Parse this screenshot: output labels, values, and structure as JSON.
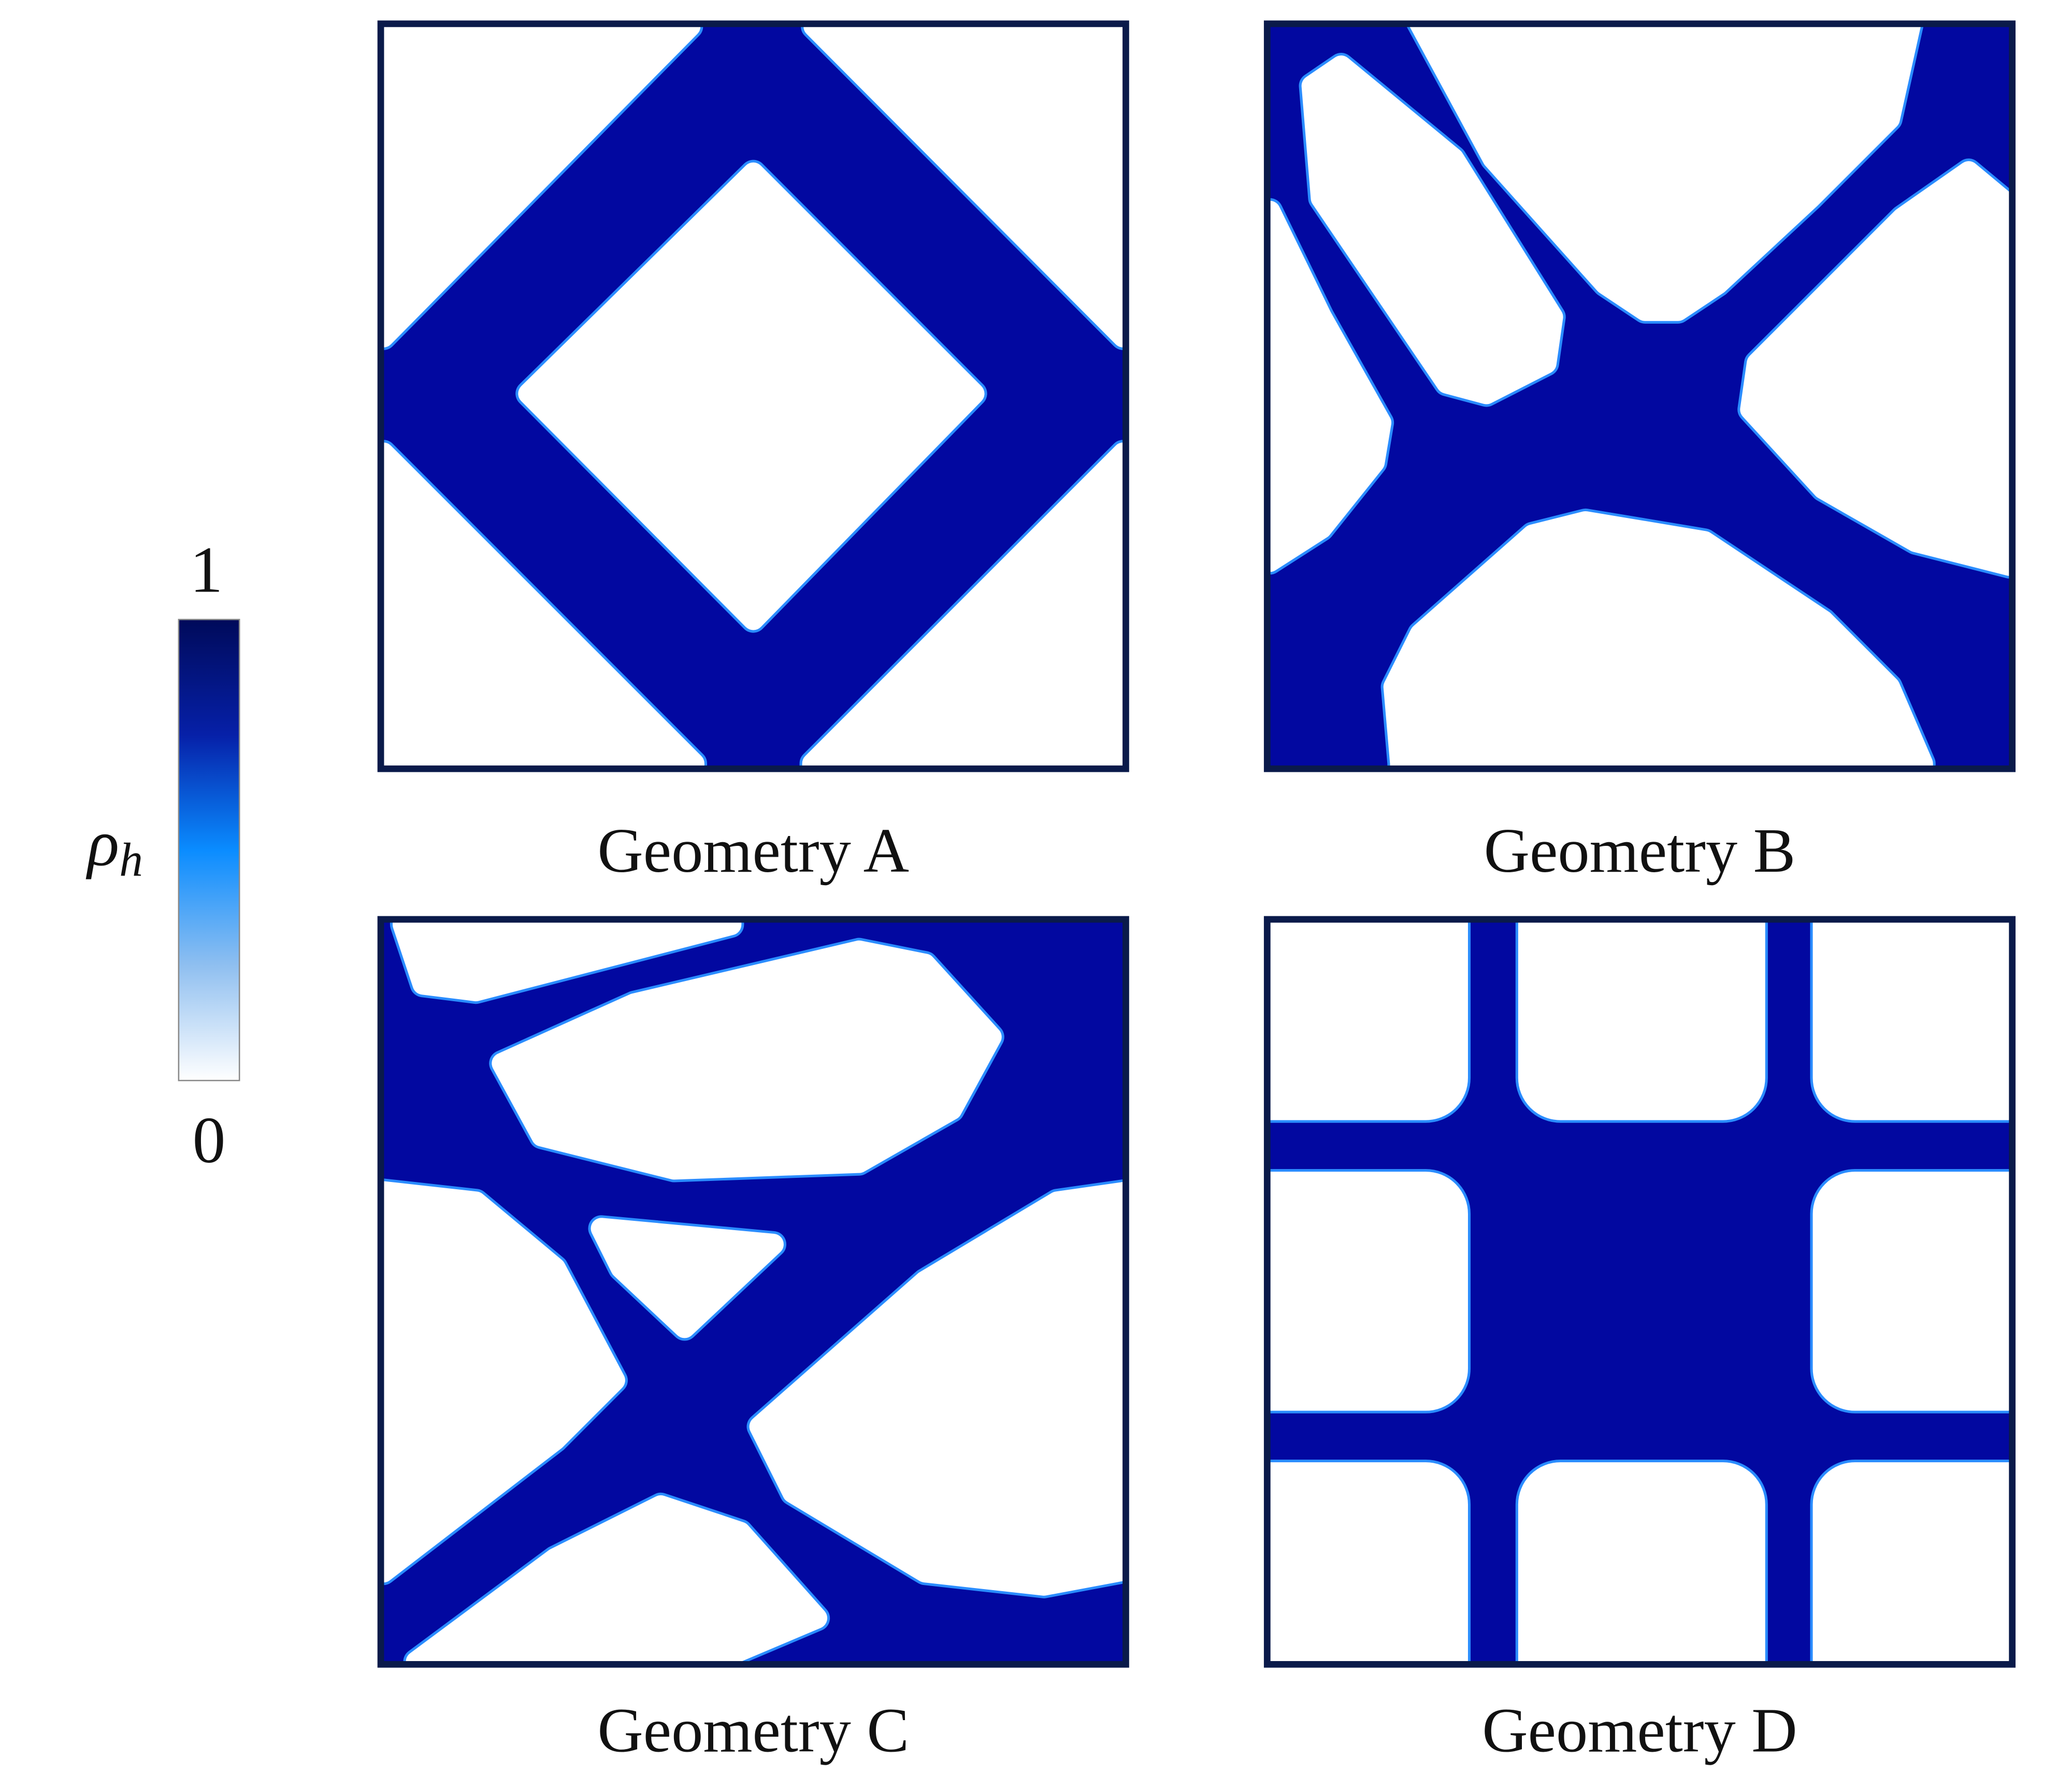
{
  "colorbar": {
    "label": "ρ",
    "label_sub": "h",
    "max": 1,
    "min": 0
  },
  "panels": [
    {
      "caption": "Geometry A"
    },
    {
      "caption": "Geometry B"
    },
    {
      "caption": "Geometry C"
    },
    {
      "caption": "Geometry D"
    }
  ]
}
